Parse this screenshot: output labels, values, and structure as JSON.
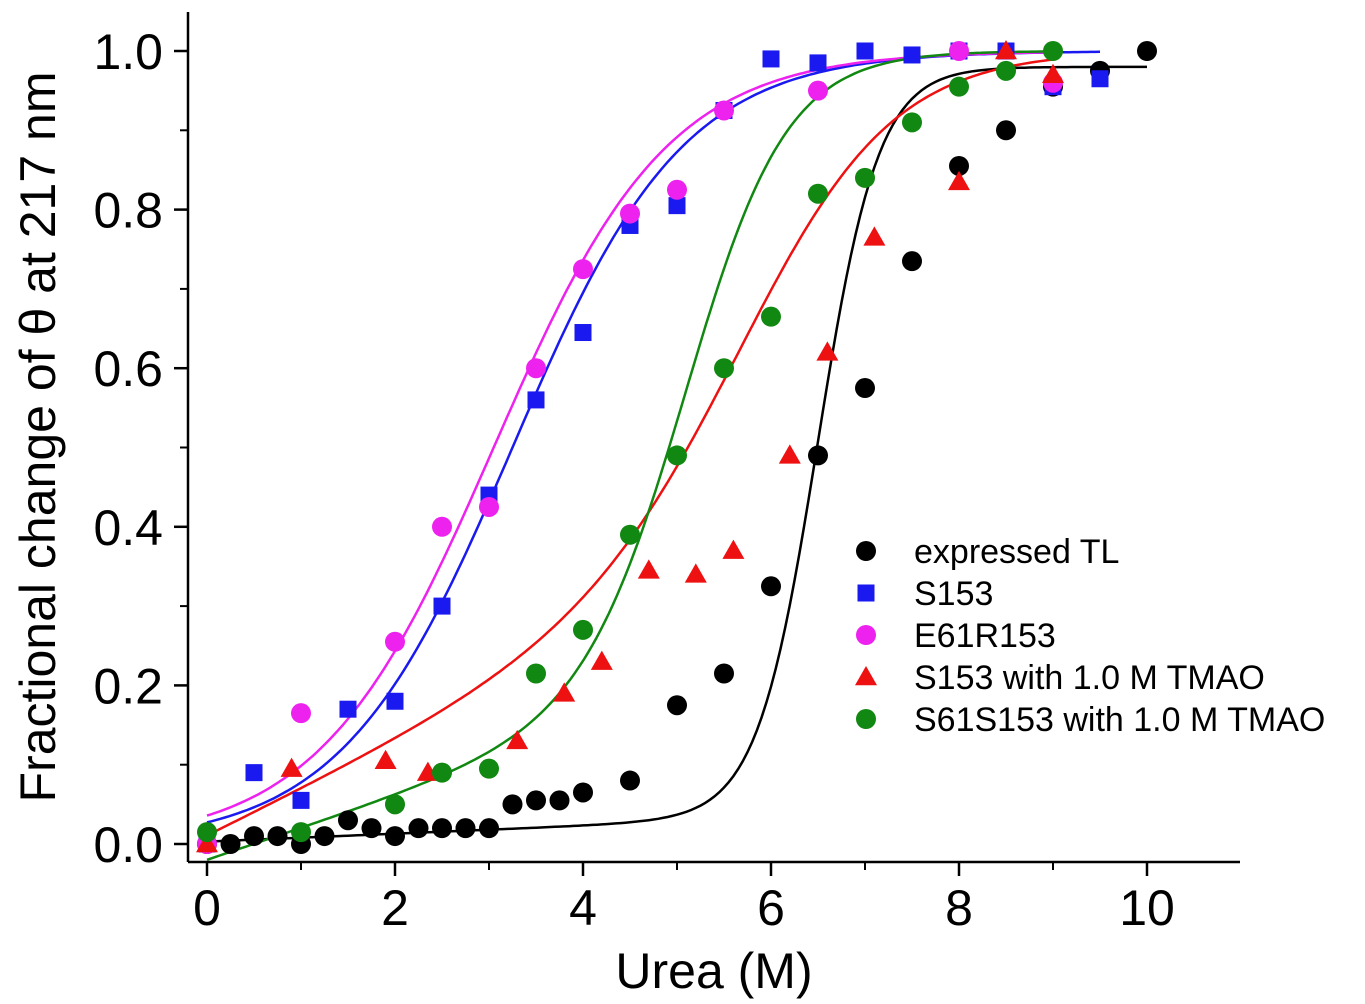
{
  "chart_data": {
    "type": "scatter",
    "title": "",
    "xlabel": "Urea (M)",
    "ylabel": "Fractional change of θ at 217 nm",
    "xlim": [
      -0.2,
      11.0
    ],
    "ylim": [
      -0.02,
      1.05
    ],
    "x_ticks": [
      0,
      2,
      4,
      6,
      8,
      10
    ],
    "x_tick_labels": [
      "0",
      "2",
      "4",
      "6",
      "8",
      "10"
    ],
    "y_ticks": [
      0.0,
      0.2,
      0.4,
      0.6,
      0.8,
      1.0
    ],
    "y_tick_labels": [
      "0.0",
      "0.2",
      "0.4",
      "0.6",
      "0.8",
      "1.0"
    ],
    "grid": false,
    "legend_position": "lower-right",
    "series": [
      {
        "name": "expressed TL",
        "color": "#000000",
        "marker": "circle",
        "x": [
          0,
          0.25,
          0.5,
          0.75,
          1.0,
          1.25,
          1.5,
          1.75,
          2.0,
          2.25,
          2.5,
          2.75,
          3.0,
          3.25,
          3.5,
          3.75,
          4.0,
          4.5,
          5.0,
          5.5,
          6.0,
          6.5,
          7.0,
          7.5,
          8.0,
          8.5,
          9.0,
          9.5,
          10.0
        ],
        "y": [
          0.0,
          0.0,
          0.01,
          0.01,
          0.0,
          0.01,
          0.03,
          0.02,
          0.01,
          0.02,
          0.02,
          0.02,
          0.02,
          0.05,
          0.055,
          0.055,
          0.065,
          0.08,
          0.175,
          0.215,
          0.325,
          0.49,
          0.575,
          0.735,
          0.855,
          0.9,
          0.955,
          0.975,
          1.0
        ],
        "fit": {
          "kind": "two-state",
          "m": 7.7,
          "y0": 0.003,
          "s0": 0.005,
          "cmid": 6.5,
          "y1": 0.98,
          "s1": 0.0
        }
      },
      {
        "name": "S153",
        "color": "#1a1af0",
        "marker": "square",
        "x": [
          0,
          0.5,
          1.0,
          1.5,
          2.0,
          2.5,
          3.0,
          3.5,
          4.0,
          4.5,
          5.0,
          5.5,
          6.0,
          6.5,
          7.0,
          7.5,
          8.0,
          8.5,
          9.0,
          9.5
        ],
        "y": [
          0.0,
          0.09,
          0.055,
          0.17,
          0.18,
          0.3,
          0.44,
          0.56,
          0.645,
          0.78,
          0.805,
          0.925,
          0.99,
          0.985,
          1.0,
          0.995,
          1.0,
          1.0,
          0.955,
          0.965
        ],
        "fit": {
          "kind": "logistic",
          "a": 1.0,
          "cmid": 3.25,
          "k": 1.1
        }
      },
      {
        "name": "E61R153",
        "color": "#ee22ee",
        "marker": "circle",
        "x": [
          0,
          1.0,
          2.0,
          2.5,
          3.0,
          3.5,
          4.0,
          4.5,
          5.0,
          5.5,
          6.5,
          8.0,
          9.0
        ],
        "y": [
          0.0,
          0.165,
          0.255,
          0.4,
          0.425,
          0.6,
          0.725,
          0.795,
          0.825,
          0.925,
          0.95,
          1.0,
          0.96
        ],
        "fit": {
          "kind": "logistic",
          "a": 1.0,
          "cmid": 3.05,
          "k": 1.08
        }
      },
      {
        "name": "S153 with 1.0 M TMAO",
        "color": "#ee1111",
        "marker": "triangle",
        "x": [
          0,
          0.9,
          1.9,
          2.35,
          3.3,
          3.8,
          4.2,
          4.7,
          5.2,
          5.6,
          6.2,
          6.6,
          7.1,
          8.0,
          8.5,
          9.0
        ],
        "y": [
          0.0,
          0.095,
          0.105,
          0.09,
          0.13,
          0.19,
          0.23,
          0.345,
          0.34,
          0.37,
          0.49,
          0.62,
          0.765,
          0.835,
          1.0,
          0.97
        ],
        "fit": {
          "kind": "two-state",
          "m": 3.0,
          "y0": 0.01,
          "s0": 0.058,
          "cmid": 5.9,
          "y1": 1.0,
          "s1": 0.0
        }
      },
      {
        "name": "S61S153 with 1.0 M TMAO",
        "color": "#118811",
        "marker": "circle",
        "x": [
          0,
          1.0,
          2.0,
          2.5,
          3.0,
          3.5,
          4.0,
          4.5,
          5.0,
          5.5,
          6.0,
          6.5,
          7.0,
          7.5,
          8.0,
          8.5,
          9.0
        ],
        "y": [
          0.015,
          0.015,
          0.05,
          0.09,
          0.095,
          0.215,
          0.27,
          0.39,
          0.49,
          0.6,
          0.665,
          0.82,
          0.84,
          0.91,
          0.955,
          0.975,
          1.0
        ],
        "fit": {
          "kind": "two-state",
          "m": 4.6,
          "y0": -0.02,
          "s0": 0.04,
          "cmid": 5.15,
          "y1": 1.0,
          "s1": 0.0
        }
      }
    ]
  }
}
